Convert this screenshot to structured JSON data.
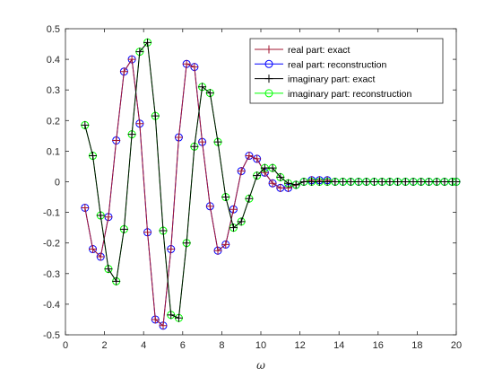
{
  "chart_data": {
    "type": "line",
    "xlabel": "ω",
    "xlim": [
      0,
      20
    ],
    "ylim": [
      -0.5,
      0.5
    ],
    "xticks": [
      0,
      2,
      4,
      6,
      8,
      10,
      12,
      14,
      16,
      18,
      20
    ],
    "yticks": [
      -0.5,
      -0.4,
      -0.3,
      -0.2,
      -0.1,
      0,
      0.1,
      0.2,
      0.3,
      0.4,
      0.5
    ],
    "xtick_labels": [
      "0",
      "2",
      "4",
      "6",
      "8",
      "10",
      "12",
      "14",
      "16",
      "18",
      "20"
    ],
    "ytick_labels": [
      "-0.5",
      "-0.4",
      "-0.3",
      "-0.2",
      "-0.1",
      "0",
      "0.1",
      "0.2",
      "0.3",
      "0.4",
      "0.5"
    ],
    "grid": false,
    "legend_position": "top-right",
    "x": [
      1.0,
      1.4,
      1.8,
      2.2,
      2.6,
      3.0,
      3.4,
      3.8,
      4.2,
      4.6,
      5.0,
      5.4,
      5.8,
      6.2,
      6.6,
      7.0,
      7.4,
      7.8,
      8.2,
      8.6,
      9.0,
      9.4,
      9.8,
      10.2,
      10.6,
      11.0,
      11.4,
      11.8,
      12.2,
      12.6,
      13.0,
      13.4,
      13.8,
      14.2,
      14.6,
      15.0,
      15.4,
      15.8,
      16.2,
      16.6,
      17.0,
      17.4,
      17.8,
      18.2,
      18.6,
      19.0,
      19.4,
      19.8,
      20.0
    ],
    "series": [
      {
        "name": "real part: exact",
        "color": "#a2142f",
        "marker": "plus",
        "values": [
          -0.085,
          -0.22,
          -0.245,
          -0.115,
          0.135,
          0.36,
          0.4,
          0.19,
          -0.165,
          -0.45,
          -0.47,
          -0.22,
          0.145,
          0.385,
          0.375,
          0.13,
          -0.08,
          -0.225,
          -0.205,
          -0.09,
          0.035,
          0.085,
          0.075,
          0.03,
          -0.005,
          -0.02,
          -0.02,
          -0.01,
          0.0,
          0.005,
          0.005,
          0.005,
          0.0,
          0.0,
          0.0,
          0.0,
          0.0,
          0.0,
          0.0,
          0.0,
          0.0,
          0.0,
          0.0,
          0.0,
          0.0,
          0.0,
          0.0,
          0.0,
          0.0
        ]
      },
      {
        "name": "real part: reconstruction",
        "color": "#0000ff",
        "marker": "circle",
        "values": [
          -0.085,
          -0.22,
          -0.245,
          -0.115,
          0.135,
          0.36,
          0.4,
          0.19,
          -0.165,
          -0.45,
          -0.47,
          -0.22,
          0.145,
          0.385,
          0.375,
          0.13,
          -0.08,
          -0.225,
          -0.205,
          -0.09,
          0.035,
          0.085,
          0.075,
          0.03,
          -0.005,
          -0.02,
          -0.02,
          -0.01,
          0.0,
          0.005,
          0.005,
          0.005,
          0.0,
          0.0,
          0.0,
          0.0,
          0.0,
          0.0,
          0.0,
          0.0,
          0.0,
          0.0,
          0.0,
          0.0,
          0.0,
          0.0,
          0.0,
          0.0,
          0.0
        ]
      },
      {
        "name": "imaginary part: exact",
        "color": "#000000",
        "marker": "plus",
        "values": [
          0.185,
          0.085,
          -0.11,
          -0.285,
          -0.325,
          -0.155,
          0.155,
          0.425,
          0.455,
          0.215,
          -0.16,
          -0.435,
          -0.445,
          -0.2,
          0.115,
          0.31,
          0.29,
          0.13,
          -0.05,
          -0.15,
          -0.13,
          -0.055,
          0.02,
          0.045,
          0.045,
          0.015,
          -0.005,
          -0.01,
          0.0,
          0.0,
          0.0,
          0.0,
          0.0,
          0.0,
          0.0,
          0.0,
          0.0,
          0.0,
          0.0,
          0.0,
          0.0,
          0.0,
          0.0,
          0.0,
          0.0,
          0.0,
          0.0,
          0.0,
          0.0
        ]
      },
      {
        "name": "imaginary part: reconstruction",
        "color": "#00ff00",
        "marker": "circle",
        "values": [
          0.185,
          0.085,
          -0.11,
          -0.285,
          -0.325,
          -0.155,
          0.155,
          0.425,
          0.455,
          0.215,
          -0.16,
          -0.435,
          -0.445,
          -0.2,
          0.115,
          0.31,
          0.29,
          0.13,
          -0.05,
          -0.15,
          -0.13,
          -0.055,
          0.02,
          0.045,
          0.045,
          0.015,
          -0.005,
          -0.01,
          0.0,
          0.0,
          0.0,
          0.0,
          0.0,
          0.0,
          0.0,
          0.0,
          0.0,
          0.0,
          0.0,
          0.0,
          0.0,
          0.0,
          0.0,
          0.0,
          0.0,
          0.0,
          0.0,
          0.0,
          0.0
        ]
      }
    ]
  }
}
